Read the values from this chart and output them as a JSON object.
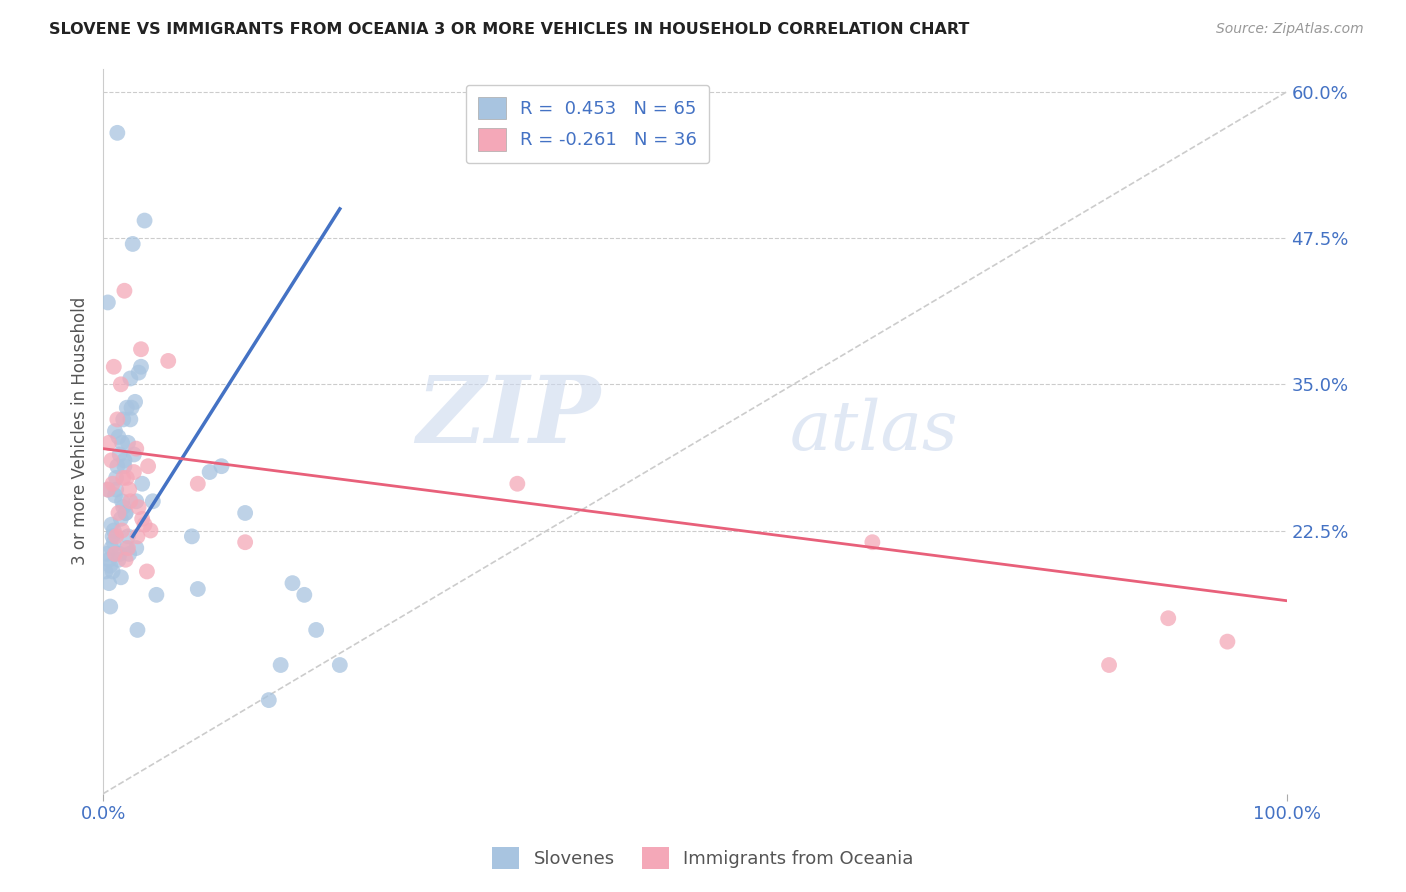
{
  "title": "SLOVENE VS IMMIGRANTS FROM OCEANIA 3 OR MORE VEHICLES IN HOUSEHOLD CORRELATION CHART",
  "source": "Source: ZipAtlas.com",
  "ylabel": "3 or more Vehicles in Household",
  "xlim": [
    0,
    100
  ],
  "ylim": [
    0,
    62
  ],
  "yticks": [
    0,
    22.5,
    35.0,
    47.5,
    60.0
  ],
  "blue_R": 0.453,
  "blue_N": 65,
  "pink_R": -0.261,
  "pink_N": 36,
  "blue_color": "#a8c4e0",
  "blue_line_color": "#4472c4",
  "pink_color": "#f4a8b8",
  "pink_line_color": "#e8607a",
  "blue_scatter_x": [
    0.2,
    0.4,
    0.5,
    0.6,
    0.7,
    0.8,
    0.9,
    1.0,
    1.1,
    1.2,
    1.3,
    1.4,
    1.5,
    1.6,
    1.7,
    1.8,
    1.9,
    2.0,
    2.1,
    2.2,
    2.3,
    2.5,
    2.6,
    2.7,
    2.8,
    3.0,
    3.2,
    3.5,
    4.2,
    4.5,
    0.3,
    0.4,
    0.5,
    0.6,
    0.7,
    0.8,
    0.9,
    1.0,
    1.1,
    1.2,
    1.3,
    1.4,
    1.5,
    1.6,
    1.7,
    1.8,
    1.9,
    2.0,
    2.1,
    2.3,
    2.4,
    2.8,
    2.9,
    3.3,
    7.5,
    8.0,
    9.0,
    10.0,
    12.0,
    14.0,
    15.0,
    16.0,
    17.0,
    18.0,
    20.0
  ],
  "blue_scatter_y": [
    19.0,
    42.0,
    18.0,
    16.0,
    23.0,
    19.0,
    22.5,
    31.0,
    26.0,
    56.5,
    20.0,
    29.0,
    18.5,
    30.0,
    32.0,
    28.0,
    24.0,
    33.0,
    22.0,
    20.5,
    35.5,
    47.0,
    29.0,
    33.5,
    21.0,
    36.0,
    36.5,
    49.0,
    25.0,
    17.0,
    20.5,
    26.0,
    20.0,
    19.5,
    21.0,
    22.0,
    21.5,
    25.5,
    27.0,
    28.0,
    30.5,
    20.5,
    23.5,
    25.0,
    24.5,
    28.5,
    24.0,
    21.0,
    30.0,
    32.0,
    33.0,
    25.0,
    14.0,
    26.5,
    22.0,
    17.5,
    27.5,
    28.0,
    24.0,
    8.0,
    11.0,
    18.0,
    17.0,
    14.0,
    11.0
  ],
  "pink_scatter_x": [
    0.4,
    0.5,
    0.7,
    0.8,
    0.9,
    1.0,
    1.1,
    1.2,
    1.3,
    1.5,
    1.6,
    1.7,
    1.8,
    1.9,
    2.0,
    2.1,
    2.2,
    2.3,
    2.6,
    2.8,
    2.9,
    3.0,
    3.2,
    3.3,
    3.5,
    3.7,
    3.8,
    4.0,
    5.5,
    8.0,
    12.0,
    35.0,
    65.0,
    85.0,
    90.0,
    95.0
  ],
  "pink_scatter_y": [
    26.0,
    30.0,
    28.5,
    26.5,
    36.5,
    20.5,
    22.0,
    32.0,
    24.0,
    35.0,
    22.5,
    27.0,
    43.0,
    20.0,
    27.0,
    21.0,
    26.0,
    25.0,
    27.5,
    29.5,
    22.0,
    24.5,
    38.0,
    23.5,
    23.0,
    19.0,
    28.0,
    22.5,
    37.0,
    26.5,
    21.5,
    26.5,
    21.5,
    11.0,
    15.0,
    13.0
  ],
  "blue_line_x0": 2.5,
  "blue_line_y0": 22.0,
  "blue_line_x1": 20.0,
  "blue_line_y1": 50.0,
  "pink_line_x0": 0.0,
  "pink_line_y0": 29.5,
  "pink_line_x1": 100.0,
  "pink_line_y1": 16.5,
  "diag_color": "#cccccc",
  "watermark_zip": "ZIP",
  "watermark_atlas": "atlas",
  "background_color": "#ffffff",
  "grid_color": "#cccccc",
  "tick_color": "#4472c4",
  "title_color": "#222222"
}
